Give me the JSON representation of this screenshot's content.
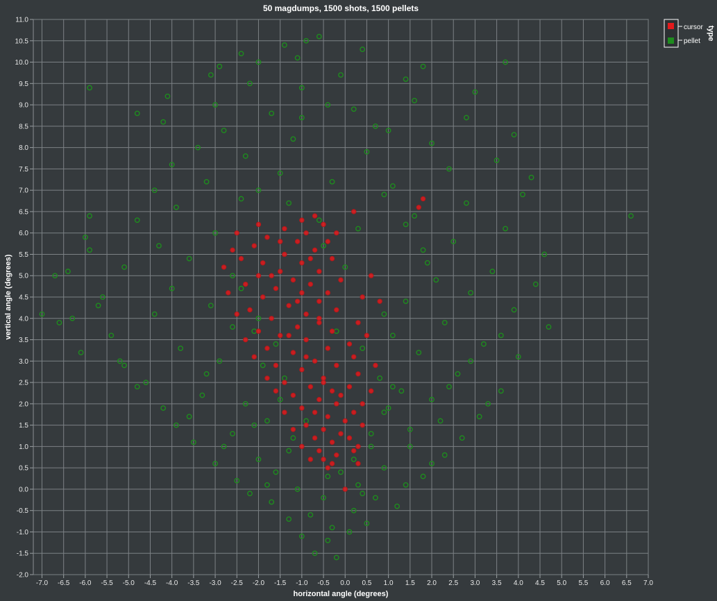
{
  "chart_data": {
    "type": "scatter",
    "title": "50 magdumps, 1500 shots, 1500 pellets",
    "xlabel": "horizontal angle (degrees)",
    "ylabel": "vertical angle (degrees)",
    "xlim": [
      -7.2,
      7.0
    ],
    "ylim": [
      -2.0,
      11.0
    ],
    "x_tick_step": 0.5,
    "y_tick_step": 0.5,
    "grid": true,
    "legend": {
      "title": "type",
      "placement": "top-right"
    },
    "series": [
      {
        "name": "cursor",
        "color": "#e31a1c",
        "marker": "filled-circle",
        "count": 1500,
        "points": [
          [
            0.0,
            0.0
          ],
          [
            -0.4,
            0.5
          ],
          [
            -0.3,
            0.6
          ],
          [
            -0.5,
            0.7
          ],
          [
            -0.2,
            0.8
          ],
          [
            0.3,
            0.6
          ],
          [
            0.2,
            0.9
          ],
          [
            -0.6,
            0.9
          ],
          [
            -0.3,
            1.1
          ],
          [
            -0.7,
            1.2
          ],
          [
            -0.1,
            1.3
          ],
          [
            0.1,
            1.2
          ],
          [
            -0.5,
            1.4
          ],
          [
            -0.9,
            1.5
          ],
          [
            0.0,
            1.6
          ],
          [
            -0.4,
            1.7
          ],
          [
            -0.7,
            1.8
          ],
          [
            0.2,
            1.8
          ],
          [
            -1.0,
            1.9
          ],
          [
            -0.2,
            2.0
          ],
          [
            -0.6,
            2.1
          ],
          [
            0.4,
            2.0
          ],
          [
            -1.2,
            2.2
          ],
          [
            -0.3,
            2.3
          ],
          [
            -0.8,
            2.4
          ],
          [
            0.1,
            2.4
          ],
          [
            -1.4,
            2.5
          ],
          [
            -0.5,
            2.6
          ],
          [
            0.3,
            2.7
          ],
          [
            -1.0,
            2.8
          ],
          [
            -0.2,
            2.9
          ],
          [
            -1.6,
            2.9
          ],
          [
            -0.7,
            3.0
          ],
          [
            0.2,
            3.1
          ],
          [
            -1.2,
            3.2
          ],
          [
            -0.4,
            3.3
          ],
          [
            -1.8,
            3.3
          ],
          [
            0.1,
            3.4
          ],
          [
            -0.9,
            3.5
          ],
          [
            -1.5,
            3.6
          ],
          [
            -0.3,
            3.7
          ],
          [
            -2.0,
            3.7
          ],
          [
            -1.1,
            3.8
          ],
          [
            -0.6,
            3.9
          ],
          [
            0.3,
            3.9
          ],
          [
            -1.7,
            4.0
          ],
          [
            -0.9,
            4.1
          ],
          [
            -0.2,
            4.2
          ],
          [
            -2.2,
            4.2
          ],
          [
            -1.3,
            4.3
          ],
          [
            -0.6,
            4.4
          ],
          [
            -1.9,
            4.5
          ],
          [
            -1.0,
            4.6
          ],
          [
            -0.4,
            4.6
          ],
          [
            0.4,
            4.5
          ],
          [
            -1.6,
            4.7
          ],
          [
            -2.3,
            4.8
          ],
          [
            -0.8,
            4.8
          ],
          [
            -1.2,
            4.9
          ],
          [
            -0.1,
            4.9
          ],
          [
            -2.0,
            5.0
          ],
          [
            -1.5,
            5.1
          ],
          [
            -0.6,
            5.1
          ],
          [
            -1.9,
            5.3
          ],
          [
            -1.0,
            5.3
          ],
          [
            -0.3,
            5.4
          ],
          [
            -2.4,
            5.4
          ],
          [
            -1.4,
            5.5
          ],
          [
            -0.7,
            5.6
          ],
          [
            -2.1,
            5.7
          ],
          [
            -1.1,
            5.8
          ],
          [
            -0.4,
            5.8
          ],
          [
            -1.8,
            5.9
          ],
          [
            -2.5,
            6.0
          ],
          [
            -0.9,
            6.0
          ],
          [
            -1.4,
            6.1
          ],
          [
            -0.5,
            6.2
          ],
          [
            -2.0,
            6.2
          ],
          [
            -1.0,
            6.3
          ],
          [
            0.2,
            6.5
          ],
          [
            -0.7,
            6.4
          ],
          [
            1.8,
            6.8
          ],
          [
            1.7,
            6.6
          ],
          [
            -2.6,
            5.6
          ],
          [
            -2.8,
            5.2
          ],
          [
            0.6,
            5.0
          ],
          [
            0.8,
            4.4
          ],
          [
            0.5,
            3.6
          ],
          [
            0.7,
            2.9
          ],
          [
            0.6,
            2.3
          ],
          [
            0.4,
            1.5
          ],
          [
            0.3,
            1.0
          ],
          [
            -0.8,
            0.7
          ],
          [
            -1.0,
            1.0
          ],
          [
            -1.2,
            1.4
          ],
          [
            -1.4,
            1.8
          ],
          [
            -1.6,
            2.3
          ],
          [
            -1.8,
            2.6
          ],
          [
            -2.1,
            3.1
          ],
          [
            -2.3,
            3.5
          ],
          [
            -2.5,
            4.1
          ],
          [
            -2.7,
            4.6
          ],
          [
            -0.1,
            2.2
          ],
          [
            -0.5,
            2.5
          ],
          [
            -0.9,
            3.1
          ],
          [
            -1.3,
            3.6
          ],
          [
            -0.6,
            4.0
          ],
          [
            -1.1,
            4.4
          ],
          [
            -1.7,
            5.0
          ],
          [
            -0.8,
            5.4
          ],
          [
            -1.5,
            5.8
          ],
          [
            -0.2,
            6.0
          ]
        ]
      },
      {
        "name": "pellet",
        "color": "#1e8c1e",
        "marker": "open-circle",
        "count": 1500,
        "points": [
          [
            -0.2,
            -1.6
          ],
          [
            -0.7,
            -1.5
          ],
          [
            -0.4,
            -1.2
          ],
          [
            0.1,
            -1.0
          ],
          [
            -1.0,
            -1.1
          ],
          [
            -0.3,
            -0.9
          ],
          [
            0.5,
            -0.8
          ],
          [
            -1.3,
            -0.7
          ],
          [
            -0.8,
            -0.6
          ],
          [
            0.2,
            -0.5
          ],
          [
            1.2,
            -0.4
          ],
          [
            -1.7,
            -0.3
          ],
          [
            -0.5,
            -0.2
          ],
          [
            0.7,
            -0.2
          ],
          [
            -2.2,
            -0.1
          ],
          [
            -1.1,
            0.0
          ],
          [
            0.3,
            0.1
          ],
          [
            1.4,
            0.1
          ],
          [
            -2.5,
            0.2
          ],
          [
            -0.4,
            0.3
          ],
          [
            1.8,
            0.3
          ],
          [
            -1.6,
            0.4
          ],
          [
            0.9,
            0.5
          ],
          [
            -3.0,
            0.6
          ],
          [
            -2.0,
            0.7
          ],
          [
            2.3,
            0.8
          ],
          [
            -1.3,
            0.9
          ],
          [
            0.6,
            1.0
          ],
          [
            -3.5,
            1.1
          ],
          [
            2.7,
            1.2
          ],
          [
            -2.6,
            1.3
          ],
          [
            1.5,
            1.4
          ],
          [
            -3.9,
            1.5
          ],
          [
            -1.8,
            1.6
          ],
          [
            3.1,
            1.7
          ],
          [
            0.9,
            1.8
          ],
          [
            -4.2,
            1.9
          ],
          [
            -2.3,
            2.0
          ],
          [
            2.0,
            2.1
          ],
          [
            -3.3,
            2.2
          ],
          [
            3.6,
            2.3
          ],
          [
            1.1,
            2.4
          ],
          [
            -4.6,
            2.5
          ],
          [
            -1.4,
            2.6
          ],
          [
            2.6,
            2.7
          ],
          [
            -5.1,
            2.9
          ],
          [
            -2.9,
            3.0
          ],
          [
            4.0,
            3.1
          ],
          [
            1.7,
            3.2
          ],
          [
            -6.1,
            3.2
          ],
          [
            -3.8,
            3.3
          ],
          [
            3.2,
            3.4
          ],
          [
            -5.4,
            3.6
          ],
          [
            -2.1,
            3.7
          ],
          [
            4.7,
            3.8
          ],
          [
            2.3,
            3.9
          ],
          [
            -6.3,
            4.0
          ],
          [
            -4.4,
            4.1
          ],
          [
            -7.0,
            4.1
          ],
          [
            3.9,
            4.2
          ],
          [
            -3.1,
            4.3
          ],
          [
            1.4,
            4.4
          ],
          [
            -5.6,
            4.5
          ],
          [
            2.9,
            4.6
          ],
          [
            -4.0,
            4.7
          ],
          [
            4.4,
            4.8
          ],
          [
            -6.7,
            5.0
          ],
          [
            -2.6,
            5.0
          ],
          [
            3.4,
            5.1
          ],
          [
            -5.1,
            5.2
          ],
          [
            1.9,
            5.3
          ],
          [
            -3.6,
            5.4
          ],
          [
            4.6,
            5.5
          ],
          [
            -5.9,
            5.6
          ],
          [
            -4.3,
            5.7
          ],
          [
            2.5,
            5.8
          ],
          [
            -6.0,
            5.9
          ],
          [
            -3.0,
            6.0
          ],
          [
            3.7,
            6.1
          ],
          [
            -4.8,
            6.3
          ],
          [
            1.6,
            6.4
          ],
          [
            6.6,
            6.4
          ],
          [
            -5.9,
            6.4
          ],
          [
            -3.9,
            6.6
          ],
          [
            2.8,
            6.7
          ],
          [
            -2.4,
            6.8
          ],
          [
            4.1,
            6.9
          ],
          [
            -4.4,
            7.0
          ],
          [
            1.1,
            7.1
          ],
          [
            -3.2,
            7.2
          ],
          [
            4.3,
            7.3
          ],
          [
            -1.5,
            7.4
          ],
          [
            2.4,
            7.5
          ],
          [
            -4.0,
            7.6
          ],
          [
            3.5,
            7.7
          ],
          [
            -2.3,
            7.8
          ],
          [
            0.5,
            7.9
          ],
          [
            -3.4,
            8.0
          ],
          [
            2.0,
            8.1
          ],
          [
            -1.2,
            8.2
          ],
          [
            3.9,
            8.3
          ],
          [
            -2.8,
            8.4
          ],
          [
            0.7,
            8.5
          ],
          [
            -4.2,
            8.6
          ],
          [
            2.8,
            8.7
          ],
          [
            -1.7,
            8.8
          ],
          [
            -4.8,
            8.8
          ],
          [
            0.2,
            8.9
          ],
          [
            -3.0,
            9.0
          ],
          [
            1.6,
            9.1
          ],
          [
            -4.1,
            9.2
          ],
          [
            3.0,
            9.3
          ],
          [
            -1.0,
            9.4
          ],
          [
            -5.9,
            9.4
          ],
          [
            -2.2,
            9.5
          ],
          [
            1.4,
            9.6
          ],
          [
            -3.1,
            9.7
          ],
          [
            -0.1,
            9.7
          ],
          [
            -2.9,
            9.9
          ],
          [
            1.8,
            9.9
          ],
          [
            -2.0,
            10.0
          ],
          [
            3.7,
            10.0
          ],
          [
            -1.1,
            10.1
          ],
          [
            -2.4,
            10.2
          ],
          [
            0.4,
            10.3
          ],
          [
            -1.4,
            10.4
          ],
          [
            -0.9,
            10.5
          ],
          [
            -0.6,
            10.6
          ],
          [
            -1.2,
            1.2
          ],
          [
            -0.9,
            1.6
          ],
          [
            -1.5,
            2.1
          ],
          [
            -1.9,
            2.9
          ],
          [
            -1.6,
            3.4
          ],
          [
            0.4,
            3.3
          ],
          [
            0.8,
            2.6
          ],
          [
            1.0,
            1.9
          ],
          [
            0.6,
            1.3
          ],
          [
            -2.0,
            4.0
          ],
          [
            0.9,
            4.1
          ],
          [
            -2.4,
            4.7
          ],
          [
            1.1,
            3.6
          ],
          [
            -0.2,
            3.7
          ],
          [
            0.0,
            5.2
          ],
          [
            -0.5,
            5.7
          ],
          [
            1.3,
            2.3
          ],
          [
            1.5,
            1.0
          ],
          [
            0.2,
            0.7
          ],
          [
            -0.1,
            0.4
          ],
          [
            0.4,
            -0.1
          ],
          [
            -1.8,
            0.1
          ],
          [
            -2.8,
            1.0
          ],
          [
            -2.1,
            1.5
          ],
          [
            2.2,
            1.6
          ],
          [
            2.0,
            0.6
          ],
          [
            -0.6,
            6.3
          ],
          [
            0.3,
            6.1
          ],
          [
            -1.3,
            6.7
          ],
          [
            -0.3,
            7.2
          ],
          [
            0.9,
            6.9
          ],
          [
            -2.0,
            7.0
          ],
          [
            1.4,
            6.2
          ],
          [
            -1.0,
            8.7
          ],
          [
            -0.4,
            9.0
          ],
          [
            1.0,
            8.4
          ],
          [
            -5.2,
            3.0
          ],
          [
            -4.8,
            2.4
          ],
          [
            -3.6,
            1.7
          ],
          [
            -3.2,
            2.7
          ],
          [
            -2.6,
            3.8
          ],
          [
            2.4,
            2.4
          ],
          [
            2.9,
            3.0
          ],
          [
            3.3,
            2.0
          ],
          [
            3.6,
            3.6
          ],
          [
            2.1,
            4.9
          ],
          [
            1.8,
            5.6
          ],
          [
            -6.4,
            5.1
          ],
          [
            -5.7,
            4.3
          ],
          [
            -6.6,
            3.9
          ]
        ]
      }
    ]
  }
}
